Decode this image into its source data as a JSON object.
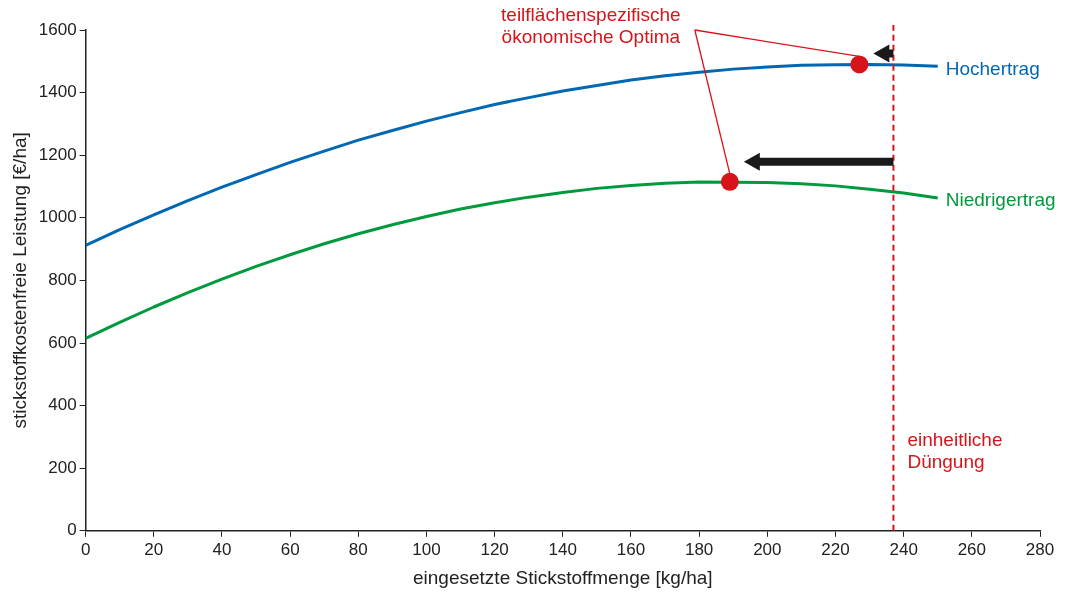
{
  "chart_data": {
    "type": "line",
    "xlabel": "eingesetzte Stickstoffmenge [kg/ha]",
    "ylabel": "stickstoffkostenfreie Leistung [€/ha]",
    "xlim": [
      0,
      280
    ],
    "xticks": [
      0,
      20,
      40,
      60,
      80,
      100,
      120,
      140,
      160,
      180,
      200,
      220,
      240,
      260,
      280
    ],
    "ylim": [
      0,
      1600
    ],
    "yticks": [
      0,
      200,
      400,
      600,
      800,
      1000,
      1200,
      1400,
      1600
    ],
    "marker": "none",
    "line_style": "solid",
    "series": [
      {
        "name": "Hochertrag",
        "color": "#0068b3",
        "x": [
          0,
          10,
          20,
          30,
          40,
          50,
          60,
          70,
          80,
          90,
          100,
          110,
          120,
          130,
          140,
          150,
          160,
          170,
          180,
          190,
          200,
          210,
          220,
          230,
          240,
          250
        ],
        "values": [
          912,
          962,
          1009,
          1055,
          1098,
          1138,
          1177,
          1213,
          1248,
          1279,
          1309,
          1336,
          1362,
          1384,
          1405,
          1423,
          1440,
          1454,
          1465,
          1475,
          1482,
          1487,
          1489,
          1490,
          1488,
          1484
        ]
      },
      {
        "name": "Niedrigertrag",
        "color": "#009a3e",
        "x": [
          0,
          10,
          20,
          30,
          40,
          50,
          60,
          70,
          80,
          90,
          100,
          110,
          120,
          130,
          140,
          150,
          160,
          170,
          180,
          200,
          210,
          220,
          230,
          240,
          250
        ],
        "values": [
          615,
          666,
          715,
          761,
          804,
          845,
          882,
          917,
          949,
          978,
          1004,
          1028,
          1048,
          1066,
          1081,
          1094,
          1103,
          1110,
          1114,
          1113,
          1109,
          1102,
          1091,
          1079,
          1063
        ]
      },
      {
        "type": "scatter",
        "marker": "circle",
        "color": "#d7141a",
        "x": [
          227,
          189
        ],
        "values": [
          1490,
          1115
        ]
      }
    ],
    "ref_lines": [
      {
        "axis": "x",
        "value": 237,
        "label": "einheitliche Düngung",
        "color": "#d7141a",
        "line_style": "dashed"
      }
    ],
    "annotations": [
      {
        "text": "teilflächenspezifische ökonomische Optima",
        "x": 189,
        "y": 1115
      }
    ]
  }
}
